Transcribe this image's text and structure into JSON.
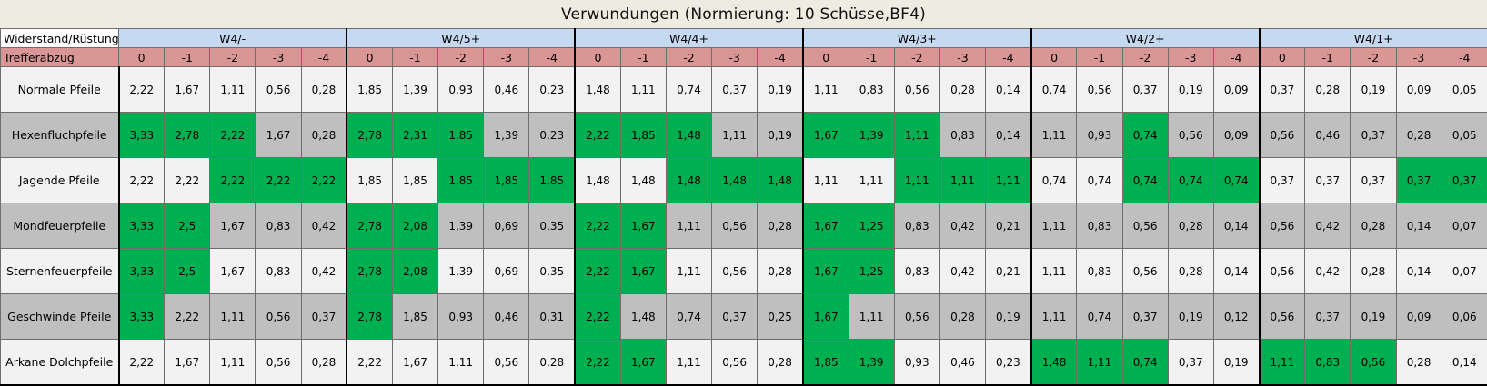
{
  "title": "Verwundungen (Normierung: 10 Schüsse,BF4)",
  "header_row_label": "Widerstand/Rüstung",
  "subheader_row_label": "Trefferabzug",
  "groups": [
    "W4/-",
    "W4/5+",
    "W4/4+",
    "W4/3+",
    "W4/2+",
    "W4/1+"
  ],
  "modifiers": [
    "0",
    "-1",
    "-2",
    "-3",
    "-4"
  ],
  "colors": {
    "header_blue": "#c5d9f1",
    "header_red": "#da9694",
    "light_row": "#f2f2f2",
    "dark_row": "#bfbfbf",
    "highlight": "#00b050",
    "title_bg": "#eeece1"
  },
  "rows": [
    {
      "label": "Normale Pfeile",
      "shade": "light",
      "values": [
        "2,22",
        "1,67",
        "1,11",
        "0,56",
        "0,28",
        "1,85",
        "1,39",
        "0,93",
        "0,46",
        "0,23",
        "1,48",
        "1,11",
        "0,74",
        "0,37",
        "0,19",
        "1,11",
        "0,83",
        "0,56",
        "0,28",
        "0,14",
        "0,74",
        "0,56",
        "0,37",
        "0,19",
        "0,09",
        "0,37",
        "0,28",
        "0,19",
        "0,09",
        "0,05"
      ],
      "highlight": []
    },
    {
      "label": "Hexenfluchpfeile",
      "shade": "dark",
      "values": [
        "3,33",
        "2,78",
        "2,22",
        "1,67",
        "0,28",
        "2,78",
        "2,31",
        "1,85",
        "1,39",
        "0,23",
        "2,22",
        "1,85",
        "1,48",
        "1,11",
        "0,19",
        "1,67",
        "1,39",
        "1,11",
        "0,83",
        "0,14",
        "1,11",
        "0,93",
        "0,74",
        "0,56",
        "0,09",
        "0,56",
        "0,46",
        "0,37",
        "0,28",
        "0,05"
      ],
      "highlight": [
        0,
        1,
        2,
        5,
        6,
        7,
        10,
        11,
        12,
        15,
        16,
        17,
        22
      ]
    },
    {
      "label": "Jagende Pfeile",
      "shade": "light",
      "values": [
        "2,22",
        "2,22",
        "2,22",
        "2,22",
        "2,22",
        "1,85",
        "1,85",
        "1,85",
        "1,85",
        "1,85",
        "1,48",
        "1,48",
        "1,48",
        "1,48",
        "1,48",
        "1,11",
        "1,11",
        "1,11",
        "1,11",
        "1,11",
        "0,74",
        "0,74",
        "0,74",
        "0,74",
        "0,74",
        "0,37",
        "0,37",
        "0,37",
        "0,37",
        "0,37"
      ],
      "highlight": [
        2,
        3,
        4,
        7,
        8,
        9,
        12,
        13,
        14,
        17,
        18,
        19,
        22,
        23,
        24,
        28,
        29
      ]
    },
    {
      "label": "Mondfeuerpfeile",
      "shade": "dark",
      "values": [
        "3,33",
        "2,5",
        "1,67",
        "0,83",
        "0,42",
        "2,78",
        "2,08",
        "1,39",
        "0,69",
        "0,35",
        "2,22",
        "1,67",
        "1,11",
        "0,56",
        "0,28",
        "1,67",
        "1,25",
        "0,83",
        "0,42",
        "0,21",
        "1,11",
        "0,83",
        "0,56",
        "0,28",
        "0,14",
        "0,56",
        "0,42",
        "0,28",
        "0,14",
        "0,07"
      ],
      "highlight": [
        0,
        1,
        5,
        6,
        10,
        11,
        15,
        16
      ]
    },
    {
      "label": "Sternenfeuerpfeile",
      "shade": "light",
      "values": [
        "3,33",
        "2,5",
        "1,67",
        "0,83",
        "0,42",
        "2,78",
        "2,08",
        "1,39",
        "0,69",
        "0,35",
        "2,22",
        "1,67",
        "1,11",
        "0,56",
        "0,28",
        "1,67",
        "1,25",
        "0,83",
        "0,42",
        "0,21",
        "1,11",
        "0,83",
        "0,56",
        "0,28",
        "0,14",
        "0,56",
        "0,42",
        "0,28",
        "0,14",
        "0,07"
      ],
      "highlight": [
        0,
        1,
        5,
        6,
        10,
        11,
        15,
        16
      ]
    },
    {
      "label": "Geschwinde Pfeile",
      "shade": "dark",
      "values": [
        "3,33",
        "2,22",
        "1,11",
        "0,56",
        "0,37",
        "2,78",
        "1,85",
        "0,93",
        "0,46",
        "0,31",
        "2,22",
        "1,48",
        "0,74",
        "0,37",
        "0,25",
        "1,67",
        "1,11",
        "0,56",
        "0,28",
        "0,19",
        "1,11",
        "0,74",
        "0,37",
        "0,19",
        "0,12",
        "0,56",
        "0,37",
        "0,19",
        "0,09",
        "0,06"
      ],
      "highlight": [
        0,
        5,
        10,
        15
      ]
    },
    {
      "label": "Arkane Dolchpfeile",
      "shade": "light",
      "values": [
        "2,22",
        "1,67",
        "1,11",
        "0,56",
        "0,28",
        "2,22",
        "1,67",
        "1,11",
        "0,56",
        "0,28",
        "2,22",
        "1,67",
        "1,11",
        "0,56",
        "0,28",
        "1,85",
        "1,39",
        "0,93",
        "0,46",
        "0,23",
        "1,48",
        "1,11",
        "0,74",
        "0,37",
        "0,19",
        "1,11",
        "0,83",
        "0,56",
        "0,28",
        "0,14"
      ],
      "highlight": [
        10,
        11,
        15,
        16,
        20,
        21,
        22,
        25,
        26,
        27
      ]
    }
  ]
}
